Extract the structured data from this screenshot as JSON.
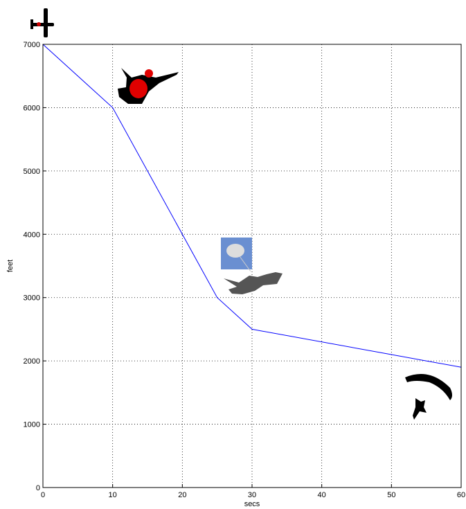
{
  "chart_data": {
    "type": "line",
    "x": [
      0,
      10,
      25,
      30,
      60
    ],
    "values": [
      7000,
      6000,
      3000,
      2500,
      1900
    ],
    "color": "#0000ff",
    "xlabel": "secs",
    "ylabel": "feet",
    "xlim": [
      0,
      60
    ],
    "ylim": [
      0,
      7000
    ],
    "xticks": [
      0,
      10,
      20,
      30,
      40,
      50,
      60
    ],
    "yticks": [
      0,
      1000,
      2000,
      3000,
      4000,
      5000,
      6000,
      7000
    ],
    "grid": true
  }
}
